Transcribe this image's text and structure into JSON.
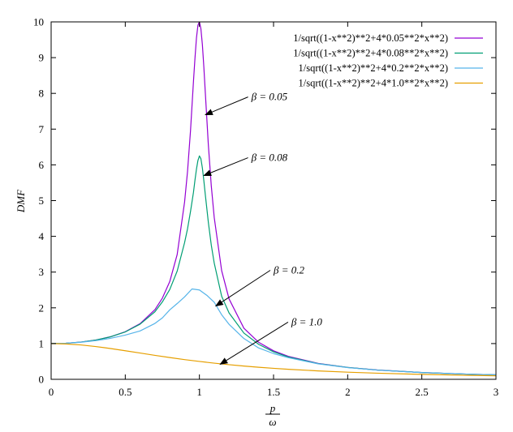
{
  "chart_data": {
    "type": "line",
    "xlabel_numerator": "p",
    "xlabel_denominator": "ω",
    "ylabel": "DMF",
    "xlim": [
      0,
      3
    ],
    "ylim": [
      0,
      10
    ],
    "x_ticks": [
      0,
      0.5,
      1,
      1.5,
      2,
      2.5,
      3
    ],
    "x_tick_labels": [
      "0",
      "0.5",
      "1",
      "1.5",
      "2",
      "2.5",
      "3"
    ],
    "y_ticks": [
      0,
      1,
      2,
      3,
      4,
      5,
      6,
      7,
      8,
      9,
      10
    ],
    "y_tick_labels": [
      "0",
      "1",
      "2",
      "3",
      "4",
      "5",
      "6",
      "7",
      "8",
      "9",
      "10"
    ],
    "grid": false,
    "legend_position": "top-right",
    "series": [
      {
        "name": "1/sqrt((1-x**2)**2+4*0.05**2*x**2)",
        "beta": 0.05,
        "color": "#9400d3",
        "x": [
          0,
          0.1,
          0.2,
          0.3,
          0.4,
          0.5,
          0.6,
          0.7,
          0.75,
          0.8,
          0.85,
          0.9,
          0.92,
          0.94,
          0.96,
          0.97,
          0.98,
          0.99,
          1.0,
          1.01,
          1.02,
          1.03,
          1.04,
          1.06,
          1.08,
          1.1,
          1.15,
          1.2,
          1.3,
          1.4,
          1.5,
          1.6,
          1.8,
          2.0,
          2.2,
          2.5,
          2.8,
          3.0
        ],
        "y": [
          1.0,
          1.01,
          1.042,
          1.098,
          1.19,
          1.331,
          1.559,
          1.948,
          2.27,
          2.734,
          3.491,
          4.959,
          5.819,
          6.961,
          8.339,
          8.98,
          9.544,
          9.906,
          10.0,
          9.809,
          9.363,
          8.73,
          8.009,
          6.577,
          5.416,
          4.526,
          3.04,
          2.249,
          1.43,
          1.034,
          0.798,
          0.641,
          0.446,
          0.333,
          0.26,
          0.19,
          0.146,
          0.125
        ]
      },
      {
        "name": "1/sqrt((1-x**2)**2+4*0.08**2*x**2)",
        "beta": 0.08,
        "color": "#009e73",
        "x": [
          0,
          0.1,
          0.2,
          0.3,
          0.4,
          0.5,
          0.6,
          0.7,
          0.75,
          0.8,
          0.85,
          0.9,
          0.92,
          0.94,
          0.96,
          0.97,
          0.98,
          0.99,
          1.0,
          1.01,
          1.02,
          1.03,
          1.04,
          1.06,
          1.08,
          1.1,
          1.15,
          1.2,
          1.3,
          1.4,
          1.5,
          1.6,
          1.8,
          2.0,
          2.2,
          2.5,
          2.8,
          3.0
        ],
        "y": [
          1.0,
          1.01,
          1.042,
          1.097,
          1.188,
          1.326,
          1.543,
          1.891,
          2.165,
          2.513,
          3.028,
          3.823,
          4.213,
          4.696,
          5.233,
          5.57,
          5.875,
          6.122,
          6.25,
          6.172,
          5.913,
          5.553,
          5.158,
          4.401,
          3.757,
          3.25,
          2.324,
          1.857,
          1.294,
          0.978,
          0.77,
          0.625,
          0.441,
          0.332,
          0.259,
          0.19,
          0.146,
          0.125
        ]
      },
      {
        "name": "1/sqrt((1-x**2)**2+4*0.2**2*x**2)",
        "beta": 0.2,
        "color": "#56b4e9",
        "x": [
          0,
          0.1,
          0.2,
          0.3,
          0.4,
          0.5,
          0.6,
          0.7,
          0.75,
          0.8,
          0.85,
          0.9,
          0.95,
          1.0,
          1.05,
          1.1,
          1.15,
          1.2,
          1.3,
          1.4,
          1.5,
          1.6,
          1.8,
          2.0,
          2.2,
          2.5,
          2.8,
          3.0
        ],
        "y": [
          1.0,
          1.009,
          1.037,
          1.081,
          1.147,
          1.238,
          1.354,
          1.564,
          1.718,
          1.943,
          2.12,
          2.306,
          2.528,
          2.5,
          2.35,
          2.157,
          1.806,
          1.539,
          1.141,
          0.877,
          0.72,
          0.606,
          0.434,
          0.327,
          0.257,
          0.189,
          0.146,
          0.124
        ]
      },
      {
        "name": "1/sqrt((1-x**2)**2+4*1.0**2*x**2)",
        "beta": 1.0,
        "color": "#e69f00",
        "x": [
          0,
          0.1,
          0.2,
          0.3,
          0.4,
          0.5,
          0.6,
          0.7,
          0.8,
          0.9,
          1.0,
          1.1,
          1.2,
          1.3,
          1.4,
          1.5,
          1.6,
          1.8,
          2.0,
          2.2,
          2.5,
          2.8,
          3.0
        ],
        "y": [
          1.0,
          0.99,
          0.962,
          0.917,
          0.862,
          0.8,
          0.735,
          0.671,
          0.61,
          0.552,
          0.5,
          0.452,
          0.41,
          0.372,
          0.338,
          0.308,
          0.281,
          0.236,
          0.2,
          0.171,
          0.138,
          0.113,
          0.1
        ]
      }
    ],
    "annotations": [
      {
        "text": "β = 0.05",
        "text_x": 1.35,
        "text_y": 7.9,
        "arrow_to_x": 1.04,
        "arrow_to_y": 7.4
      },
      {
        "text": "β = 0.08",
        "text_x": 1.35,
        "text_y": 6.2,
        "arrow_to_x": 1.03,
        "arrow_to_y": 5.7
      },
      {
        "text": "β = 0.2",
        "text_x": 1.5,
        "text_y": 3.05,
        "arrow_to_x": 1.11,
        "arrow_to_y": 2.05
      },
      {
        "text": "β = 1.0",
        "text_x": 1.62,
        "text_y": 1.6,
        "arrow_to_x": 1.14,
        "arrow_to_y": 0.42
      }
    ]
  }
}
